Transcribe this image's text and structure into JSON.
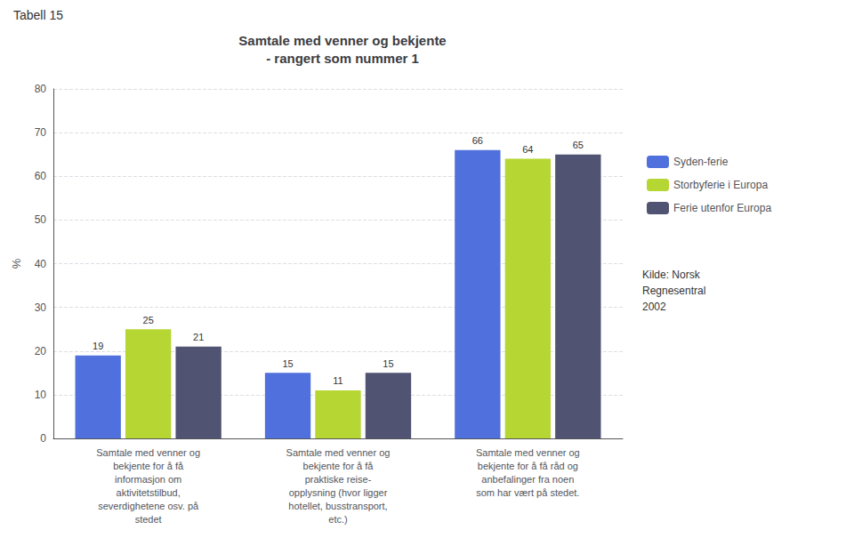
{
  "chart_data": {
    "type": "bar",
    "title": "Samtale med venner og bekjente\n- rangert som nummer 1",
    "ylabel": "%",
    "categories": [
      "Samtale med venner og\nbekjente for å få\ninformasjon om\naktivitetstilbud,\nseverdighetene osv. på\nstedet",
      "Samtale med venner og\nbekjente for å få\npraktiske reise-\nopplysning (hvor ligger\nhotellet, busstransport,\netc.)",
      "Samtale med venner og\nbekjente for å få råd og\nanbefalinger fra noen\nsom har vært på stedet."
    ],
    "series": [
      {
        "name": "Syden-ferie",
        "values": [
          19,
          15,
          66
        ]
      },
      {
        "name": "Storbyferie i Europa",
        "values": [
          25,
          11,
          64
        ]
      },
      {
        "name": "Ferie utenfor Europa",
        "values": [
          21,
          15,
          65
        ]
      }
    ],
    "ylim": [
      0,
      80
    ],
    "yticks": [
      0,
      10,
      20,
      30,
      40,
      50,
      60,
      70,
      80
    ],
    "grid": true,
    "legend": "right",
    "data_labels": true,
    "annotations": [
      "Tabell 15",
      "Kilde: Norsk\nRegnesentral\n2002"
    ]
  }
}
